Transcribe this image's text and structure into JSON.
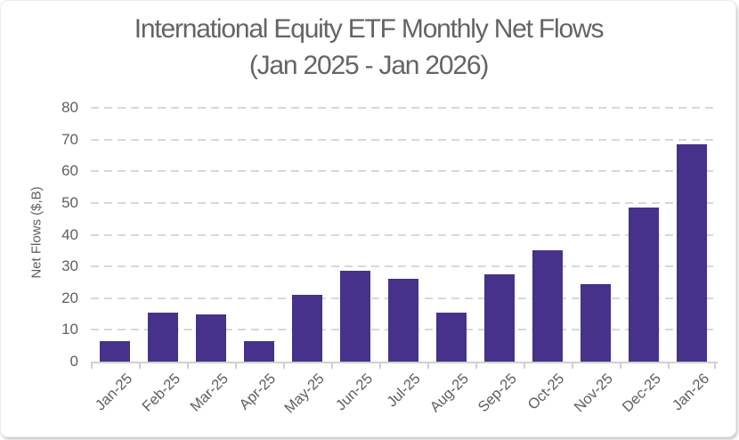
{
  "chart_data": {
    "type": "bar",
    "title_line1": "International Equity ETF Monthly Net Flows",
    "title_line2": "(Jan 2025 - Jan 2026)",
    "ylabel": "Net Flows ($,B)",
    "xlabel": "",
    "categories": [
      "Jan-25",
      "Feb-25",
      "Mar-25",
      "Apr-25",
      "May-25",
      "Jun-25",
      "Jul-25",
      "Aug-25",
      "Sep-25",
      "Oct-25",
      "Nov-25",
      "Dec-25",
      "Jan-26"
    ],
    "values": [
      6.5,
      15.5,
      15,
      6.5,
      21,
      28.5,
      26,
      15.5,
      27.5,
      35,
      24.5,
      48.5,
      68.5
    ],
    "ylim": [
      0,
      80
    ],
    "yticks": [
      0,
      10,
      20,
      30,
      40,
      50,
      60,
      70,
      80
    ],
    "grid": "dashed-horizontal",
    "legend_position": "none",
    "bar_color": "#46328A",
    "title_color": "#646464",
    "tick_label_color": "#5F5F5F",
    "gridline_color": "#D8D8D8",
    "axis_line_color": "#CFCFCF"
  }
}
